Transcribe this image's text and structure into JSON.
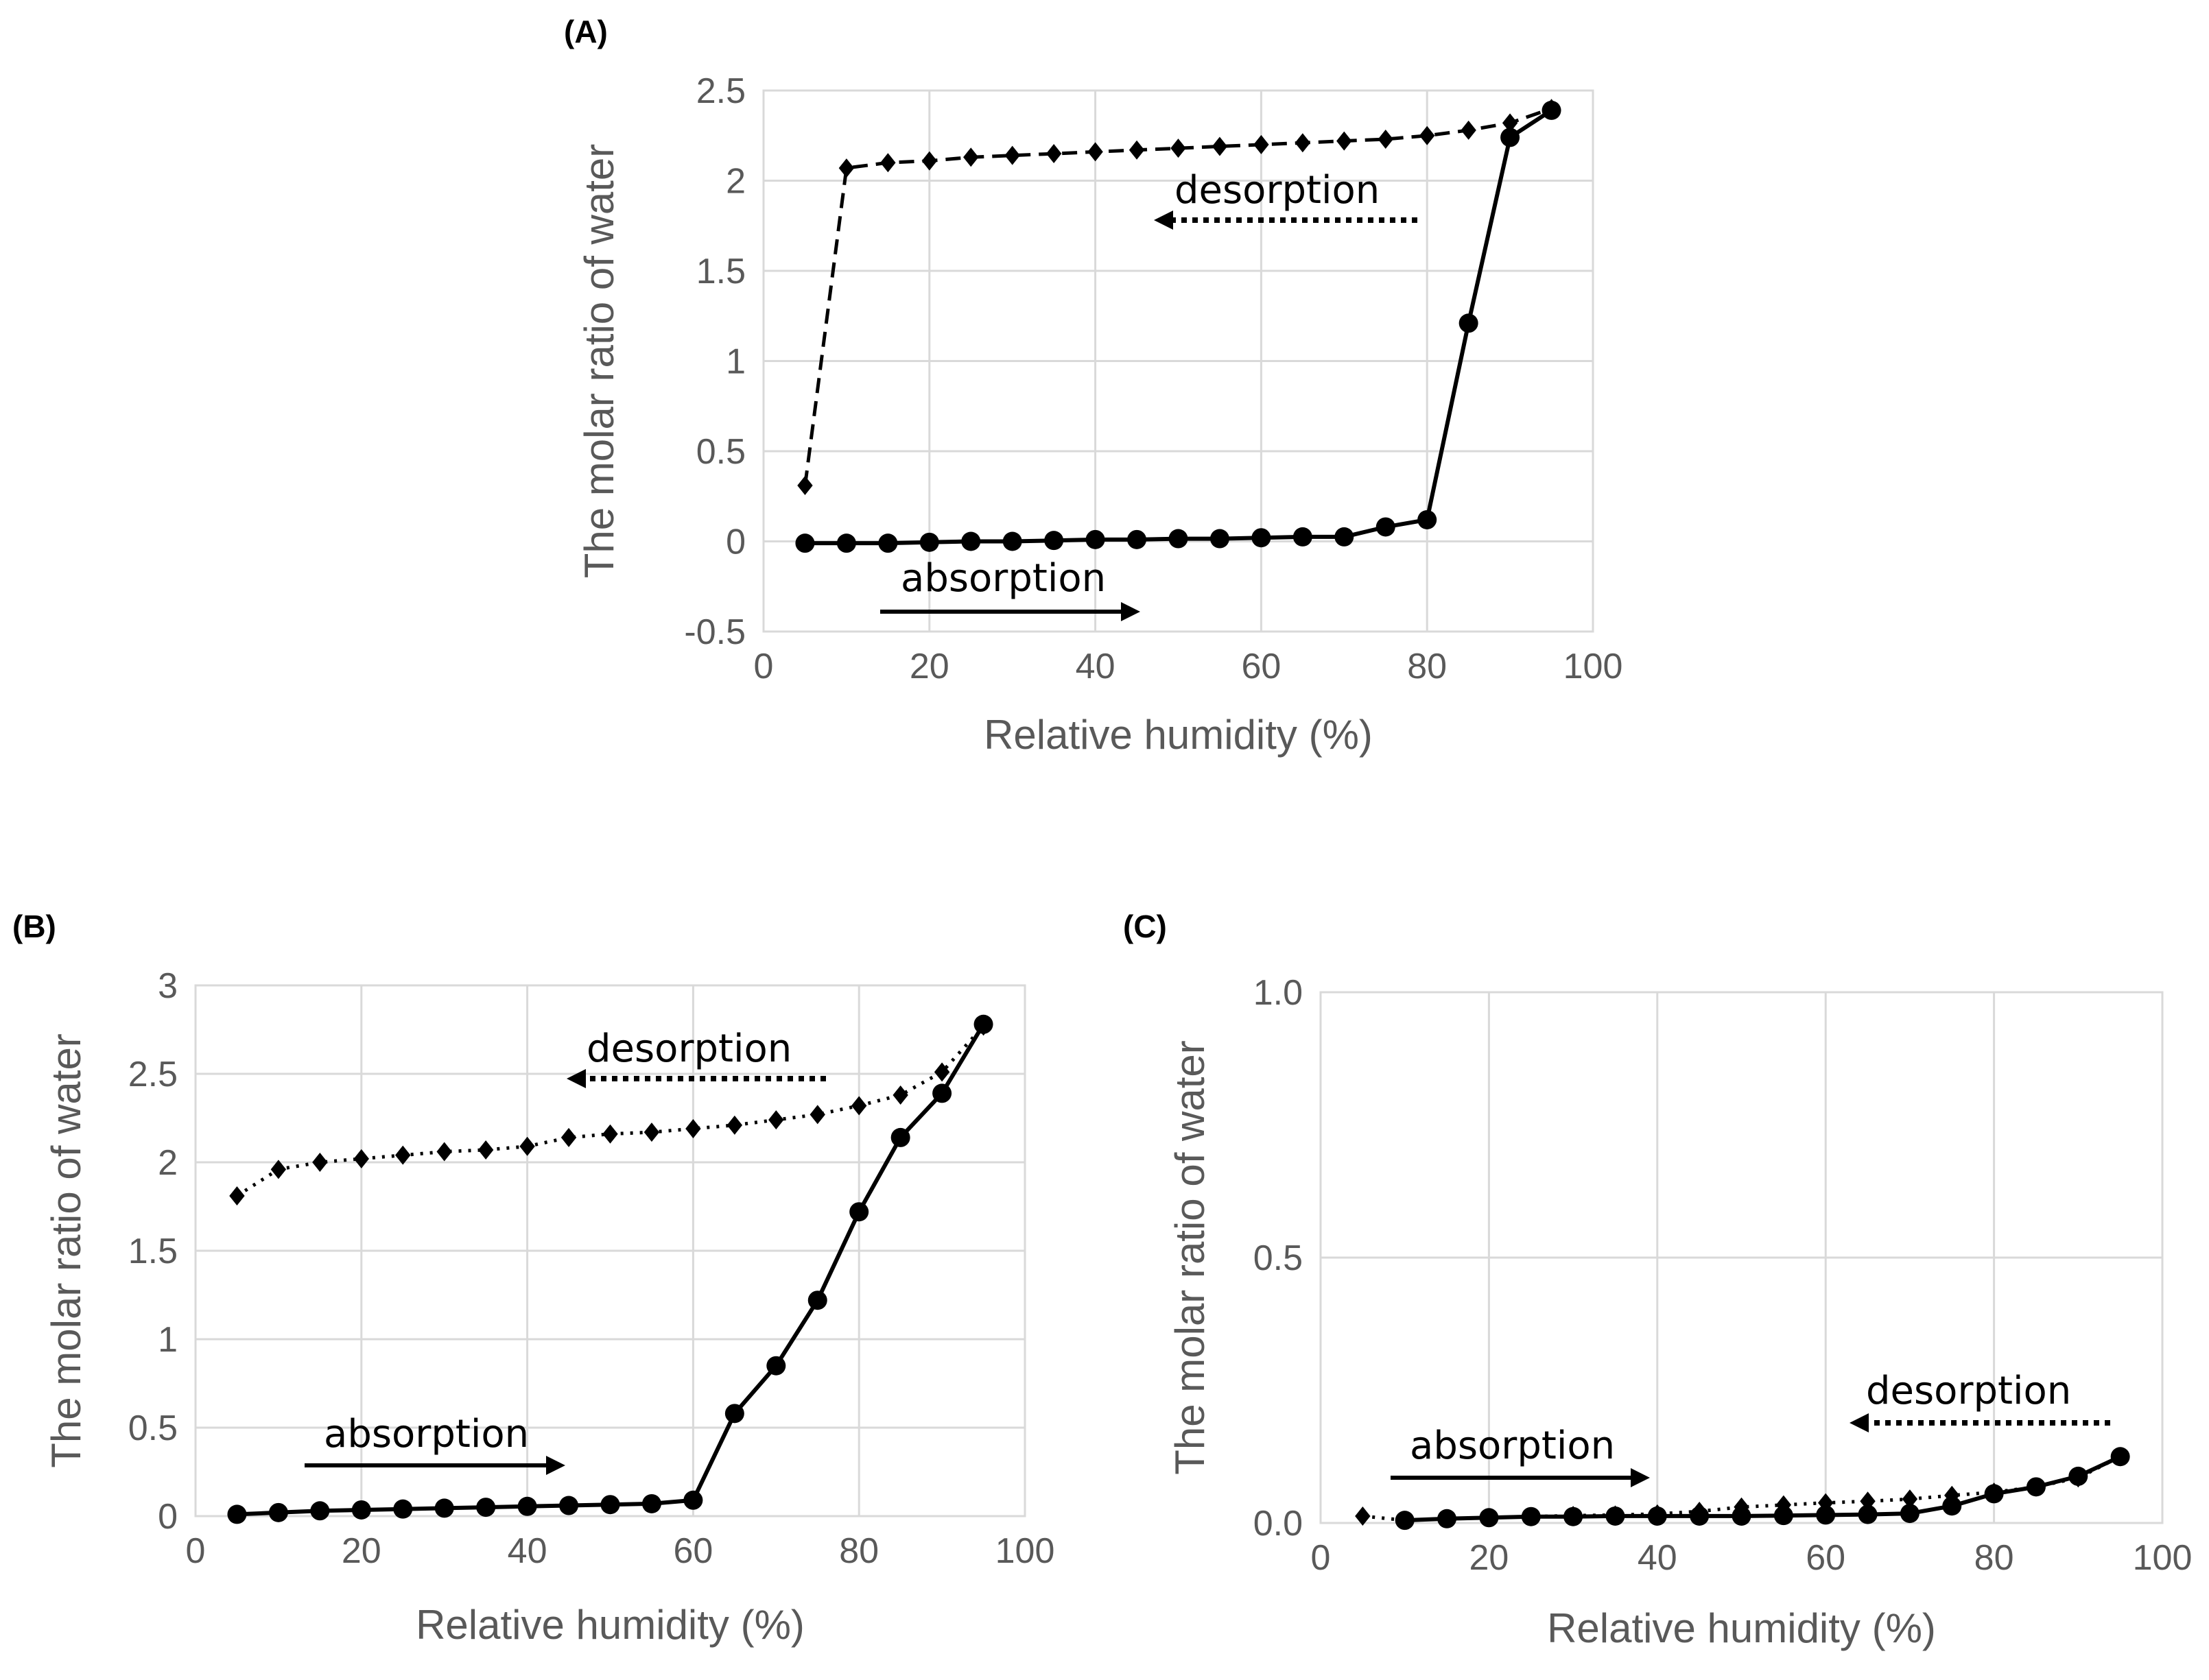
{
  "chart_data": [
    {
      "panel": "(A)",
      "type": "line",
      "xlabel": "Relative humidity (%)",
      "ylabel": "The molar ratio of water",
      "xlim": [
        0,
        100
      ],
      "ylim": [
        -0.5,
        2.5
      ],
      "xticks": [
        "0",
        "20",
        "40",
        "60",
        "80",
        "100"
      ],
      "yticks": [
        "-0.5",
        "0",
        "0.5",
        "1",
        "1.5",
        "2",
        "2.5"
      ],
      "grid": true,
      "series": [
        {
          "name": "absorption",
          "style": "solid",
          "marker": "circle",
          "x": [
            5,
            10,
            15,
            20,
            25,
            30,
            35,
            40,
            45,
            50,
            55,
            60,
            65,
            70,
            75,
            80,
            85,
            90,
            95
          ],
          "y": [
            -0.01,
            -0.01,
            -0.01,
            -0.005,
            0.0,
            0.0,
            0.005,
            0.01,
            0.01,
            0.015,
            0.015,
            0.02,
            0.025,
            0.025,
            0.08,
            0.12,
            1.21,
            2.24,
            2.39
          ]
        },
        {
          "name": "desorption",
          "style": "dashed",
          "marker": "diamond",
          "x": [
            5,
            10,
            15,
            20,
            25,
            30,
            35,
            40,
            45,
            50,
            55,
            60,
            65,
            70,
            75,
            80,
            85,
            90,
            95
          ],
          "y": [
            0.31,
            2.07,
            2.1,
            2.11,
            2.13,
            2.14,
            2.15,
            2.16,
            2.17,
            2.18,
            2.19,
            2.2,
            2.21,
            2.22,
            2.23,
            2.25,
            2.28,
            2.32,
            2.4
          ]
        }
      ],
      "annotations": [
        {
          "text": "desorption",
          "arrow": "left",
          "line": "dotted"
        },
        {
          "text": "absorption",
          "arrow": "right",
          "line": "solid"
        }
      ]
    },
    {
      "panel": "(B)",
      "type": "line",
      "xlabel": "Relative humidity (%)",
      "ylabel": "The molar ratio of water",
      "xlim": [
        0,
        100
      ],
      "ylim": [
        0,
        3
      ],
      "xticks": [
        "0",
        "20",
        "40",
        "60",
        "80",
        "100"
      ],
      "yticks": [
        "0",
        "0.5",
        "1",
        "1.5",
        "2",
        "2.5",
        "3"
      ],
      "grid": true,
      "series": [
        {
          "name": "absorption",
          "style": "solid",
          "marker": "circle",
          "x": [
            5,
            10,
            15,
            20,
            25,
            30,
            35,
            40,
            45,
            50,
            55,
            60,
            65,
            70,
            75,
            80,
            85,
            90,
            95
          ],
          "y": [
            0.01,
            0.02,
            0.03,
            0.035,
            0.04,
            0.045,
            0.05,
            0.055,
            0.06,
            0.065,
            0.07,
            0.09,
            0.58,
            0.85,
            1.22,
            1.72,
            2.14,
            2.39,
            2.78
          ]
        },
        {
          "name": "desorption",
          "style": "dotted",
          "marker": "diamond",
          "x": [
            5,
            10,
            15,
            20,
            25,
            30,
            35,
            40,
            45,
            50,
            55,
            60,
            65,
            70,
            75,
            80,
            85,
            90,
            95
          ],
          "y": [
            1.81,
            1.96,
            2.0,
            2.02,
            2.04,
            2.06,
            2.07,
            2.09,
            2.14,
            2.16,
            2.17,
            2.19,
            2.21,
            2.24,
            2.27,
            2.32,
            2.38,
            2.51,
            2.77
          ]
        }
      ],
      "annotations": [
        {
          "text": "desorption",
          "arrow": "left",
          "line": "dotted"
        },
        {
          "text": "absorption",
          "arrow": "right",
          "line": "solid"
        }
      ]
    },
    {
      "panel": "(C)",
      "type": "line",
      "xlabel": "Relative humidity (%)",
      "ylabel": "The molar ratio of water",
      "xlim": [
        0,
        100
      ],
      "ylim": [
        0,
        1.0
      ],
      "xticks": [
        "0",
        "20",
        "40",
        "60",
        "80",
        "100"
      ],
      "yticks": [
        "0.0",
        "0.5",
        "1.0"
      ],
      "grid": true,
      "series": [
        {
          "name": "absorption",
          "style": "solid",
          "marker": "circle",
          "x": [
            10,
            15,
            20,
            25,
            30,
            35,
            40,
            45,
            50,
            55,
            60,
            65,
            70,
            75,
            80,
            85,
            90,
            95
          ],
          "y": [
            0.005,
            0.008,
            0.01,
            0.012,
            0.012,
            0.013,
            0.013,
            0.013,
            0.013,
            0.014,
            0.015,
            0.016,
            0.018,
            0.032,
            0.055,
            0.068,
            0.088,
            0.125
          ]
        },
        {
          "name": "desorption",
          "style": "dotted",
          "marker": "diamond",
          "x": [
            5,
            10,
            15,
            20,
            25,
            30,
            35,
            40,
            45,
            50,
            55,
            60,
            65,
            70,
            75,
            80,
            85,
            90,
            95
          ],
          "y": [
            0.013,
            0.005,
            0.008,
            0.01,
            0.012,
            0.014,
            0.015,
            0.017,
            0.022,
            0.03,
            0.034,
            0.038,
            0.041,
            0.045,
            0.052,
            0.058,
            0.068,
            0.085,
            0.125
          ]
        }
      ],
      "annotations": [
        {
          "text": "desorption",
          "arrow": "left",
          "line": "dotted"
        },
        {
          "text": "absorption",
          "arrow": "right",
          "line": "solid"
        }
      ]
    }
  ]
}
